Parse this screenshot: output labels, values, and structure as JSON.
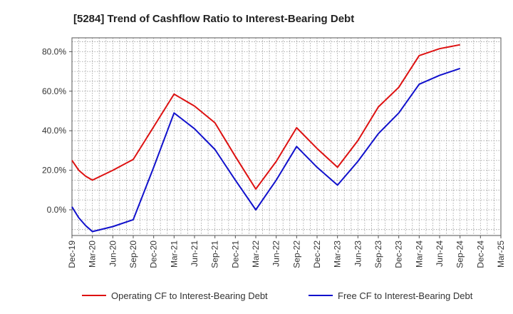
{
  "chart_data": {
    "type": "line",
    "title": "[5284]  Trend of Cashflow Ratio to Interest-Bearing Debt",
    "xlabel": "",
    "ylabel": "",
    "categories": [
      "Dec-19",
      "Mar-20",
      "Jun-20",
      "Sep-20",
      "Dec-20",
      "Mar-21",
      "Jun-21",
      "Sep-21",
      "Dec-21",
      "Mar-22",
      "Jun-22",
      "Sep-22",
      "Dec-22",
      "Mar-23",
      "Jun-23",
      "Sep-23",
      "Dec-23",
      "Mar-24",
      "Jun-24",
      "Sep-24",
      "Dec-24",
      "Mar-25"
    ],
    "ylim": [
      -13,
      87
    ],
    "yticks": [
      0,
      20,
      40,
      60,
      80
    ],
    "ytick_labels": [
      "0.0%",
      "20.0%",
      "40.0%",
      "60.0%",
      "80.0%"
    ],
    "grid": true,
    "legend_position": "bottom",
    "series": [
      {
        "name": "Operating CF to Interest-Bearing Debt",
        "color": "#dd1111",
        "points": [
          {
            "x": 0,
            "y": 25.0
          },
          {
            "x": 0.33,
            "y": 20.0
          },
          {
            "x": 0.67,
            "y": 17.0
          },
          {
            "x": 1,
            "y": 15.0
          },
          {
            "x": 2,
            "y": 20.0
          },
          {
            "x": 3,
            "y": 25.5
          },
          {
            "x": 4,
            "y": 42.0
          },
          {
            "x": 5,
            "y": 58.5
          },
          {
            "x": 6,
            "y": 52.5
          },
          {
            "x": 7,
            "y": 44.0
          },
          {
            "x": 8,
            "y": 27.0
          },
          {
            "x": 9,
            "y": 10.5
          },
          {
            "x": 10,
            "y": 24.5
          },
          {
            "x": 11,
            "y": 41.5
          },
          {
            "x": 12,
            "y": 31.0
          },
          {
            "x": 13,
            "y": 21.5
          },
          {
            "x": 14,
            "y": 35.0
          },
          {
            "x": 15,
            "y": 52.0
          },
          {
            "x": 16,
            "y": 62.0
          },
          {
            "x": 17,
            "y": 78.0
          },
          {
            "x": 18,
            "y": 81.5
          },
          {
            "x": 19,
            "y": 83.5
          }
        ]
      },
      {
        "name": "Free CF to Interest-Bearing Debt",
        "color": "#1111cc",
        "points": [
          {
            "x": 0,
            "y": 1.5
          },
          {
            "x": 0.33,
            "y": -4.0
          },
          {
            "x": 0.67,
            "y": -8.0
          },
          {
            "x": 1,
            "y": -11.0
          },
          {
            "x": 2,
            "y": -8.5
          },
          {
            "x": 3,
            "y": -5.0
          },
          {
            "x": 4,
            "y": 21.5
          },
          {
            "x": 5,
            "y": 49.0
          },
          {
            "x": 6,
            "y": 41.0
          },
          {
            "x": 7,
            "y": 30.5
          },
          {
            "x": 8,
            "y": 15.0
          },
          {
            "x": 9,
            "y": 0.0
          },
          {
            "x": 10,
            "y": 15.0
          },
          {
            "x": 11,
            "y": 32.0
          },
          {
            "x": 12,
            "y": 21.5
          },
          {
            "x": 13,
            "y": 12.5
          },
          {
            "x": 14,
            "y": 24.5
          },
          {
            "x": 15,
            "y": 38.5
          },
          {
            "x": 16,
            "y": 49.0
          },
          {
            "x": 17,
            "y": 63.5
          },
          {
            "x": 18,
            "y": 68.0
          },
          {
            "x": 19,
            "y": 71.5
          }
        ]
      }
    ]
  }
}
